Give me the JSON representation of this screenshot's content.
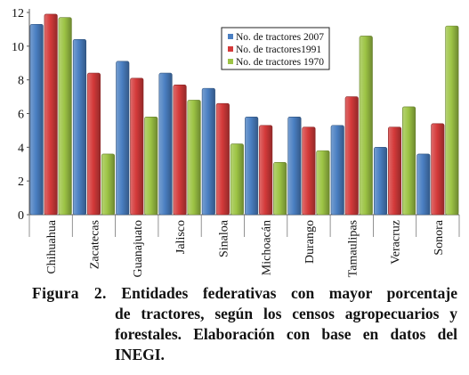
{
  "chart_data": {
    "type": "bar",
    "categories": [
      "Chihuahua",
      "Zacatecas",
      "Guanajuato",
      "Jalisco",
      "Sinaloa",
      "Michoacán",
      "Durango",
      "Tamaulipas",
      "Veracruz",
      "Sonora"
    ],
    "series": [
      {
        "name": "No. de tractores 2007",
        "color": "#4a7fc2",
        "values": [
          11.3,
          10.4,
          9.1,
          8.4,
          7.5,
          5.8,
          5.8,
          5.3,
          4.0,
          3.6
        ]
      },
      {
        "name": "No. de tractores1991",
        "color": "#d43a3a",
        "values": [
          11.9,
          8.4,
          8.1,
          7.7,
          6.6,
          5.3,
          5.2,
          7.0,
          5.2,
          5.4
        ]
      },
      {
        "name": "No. de tractores 1970",
        "color": "#9dc445",
        "values": [
          11.7,
          3.6,
          5.8,
          6.8,
          4.2,
          3.1,
          3.8,
          10.6,
          6.4,
          11.2
        ]
      }
    ],
    "yticks": [
      0,
      2,
      4,
      6,
      8,
      10,
      12
    ],
    "ylim": [
      0,
      12
    ],
    "legend_position": "top-right",
    "grid": false
  },
  "caption": {
    "label": "Figura 2.",
    "line1": "Entidades federativas con mayor porcentaje",
    "line2": "de tractores, según los censos agropecuarios y",
    "line3": "forestales. Elaboración con base en datos del",
    "line4": "INEGI."
  }
}
